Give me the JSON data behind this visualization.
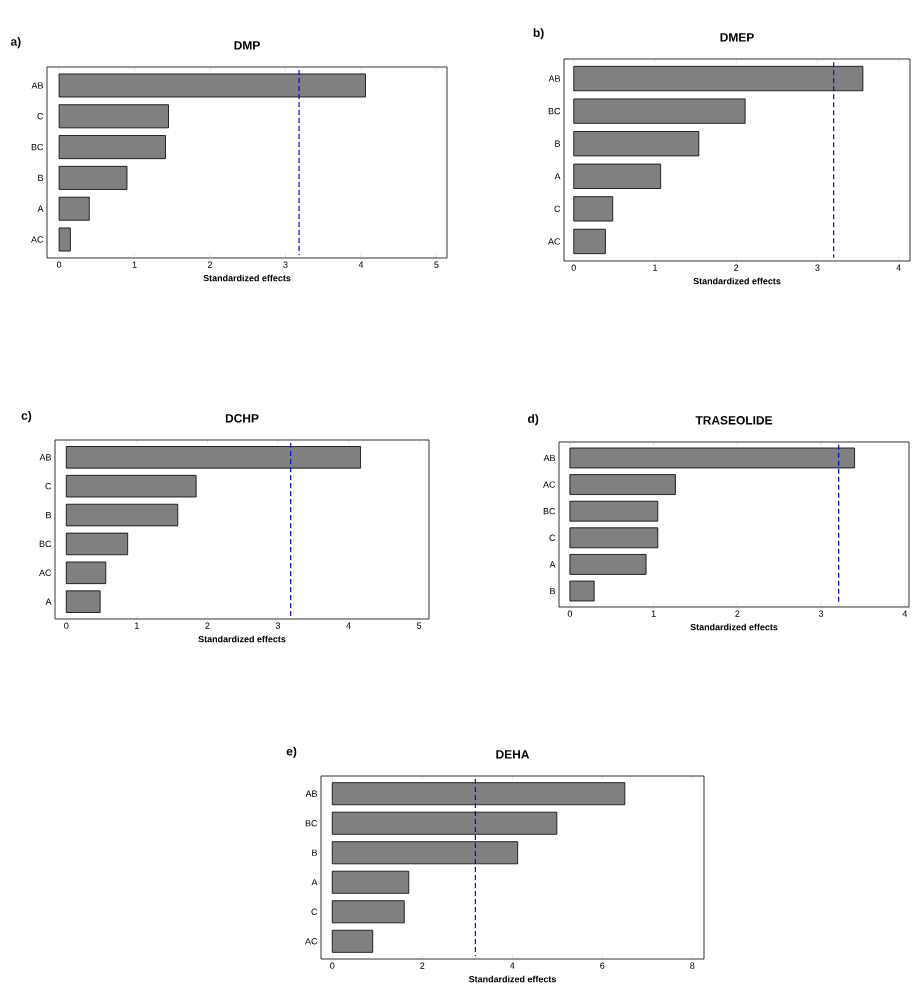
{
  "chart_data": [
    {
      "type": "bar",
      "orientation": "horizontal",
      "title": "DMP",
      "xlabel": "Standardized effects",
      "annotations": [
        "a)"
      ],
      "categories": [
        "AB",
        "C",
        "BC",
        "B",
        "A",
        "AC"
      ],
      "values": [
        4.06,
        1.45,
        1.41,
        0.9,
        0.4,
        0.15
      ],
      "color": "#808080",
      "xlim": [
        -0.16,
        5.14
      ],
      "xticks": [
        0,
        1,
        2,
        3,
        4,
        5
      ],
      "ref_lines": [
        {
          "axis": "x",
          "value": 3.18,
          "color": "#0000ff",
          "line_style": "dashed"
        }
      ]
    },
    {
      "type": "bar",
      "orientation": "horizontal",
      "title": "DMEP",
      "xlabel": "Standardized effects",
      "annotations": [
        "b)"
      ],
      "categories": [
        "AB",
        "BC",
        "B",
        "A",
        "C",
        "AC"
      ],
      "values": [
        3.56,
        2.11,
        1.54,
        1.07,
        0.48,
        0.39
      ],
      "color": "#808080",
      "xlim": [
        -0.12,
        4.14
      ],
      "xticks": [
        0,
        1,
        2,
        3,
        4
      ],
      "ref_lines": [
        {
          "axis": "x",
          "value": 3.2,
          "color": "#0000ff",
          "line_style": "dashed"
        }
      ]
    },
    {
      "type": "bar",
      "orientation": "horizontal",
      "title": "DCHP",
      "xlabel": "Standardized effects",
      "annotations": [
        "c)"
      ],
      "categories": [
        "AB",
        "C",
        "B",
        "BC",
        "AC",
        "A"
      ],
      "values": [
        4.17,
        1.84,
        1.58,
        0.87,
        0.56,
        0.48
      ],
      "color": "#808080",
      "xlim": [
        -0.16,
        5.14
      ],
      "xticks": [
        0,
        1,
        2,
        3,
        4,
        5
      ],
      "ref_lines": [
        {
          "axis": "x",
          "value": 3.18,
          "color": "#0000ff",
          "line_style": "dashed"
        }
      ]
    },
    {
      "type": "bar",
      "orientation": "horizontal",
      "title": "TRASEOLIDE",
      "xlabel": "Standardized effects",
      "annotations": [
        "d)"
      ],
      "categories": [
        "AB",
        "AC",
        "BC",
        "C",
        "A",
        "B"
      ],
      "values": [
        3.4,
        1.26,
        1.05,
        1.05,
        0.91,
        0.29
      ],
      "color": "#808080",
      "xlim": [
        -0.13,
        4.05
      ],
      "xticks": [
        0,
        1,
        2,
        3,
        4
      ],
      "ref_lines": [
        {
          "axis": "x",
          "value": 3.21,
          "color": "#0000ff",
          "line_style": "dashed"
        }
      ]
    },
    {
      "type": "bar",
      "orientation": "horizontal",
      "title": "DEHA",
      "xlabel": "Standardized effects",
      "annotations": [
        "e)"
      ],
      "categories": [
        "AB",
        "BC",
        "B",
        "A",
        "C",
        "AC"
      ],
      "values": [
        6.5,
        4.99,
        4.12,
        1.7,
        1.6,
        0.9
      ],
      "color": "#808080",
      "xlim": [
        -0.25,
        8.26
      ],
      "xticks": [
        0,
        2,
        4,
        6,
        8
      ],
      "ref_lines": [
        {
          "axis": "x",
          "value": 3.18,
          "color": "#0000ff",
          "line_style": "dashed"
        }
      ]
    }
  ]
}
